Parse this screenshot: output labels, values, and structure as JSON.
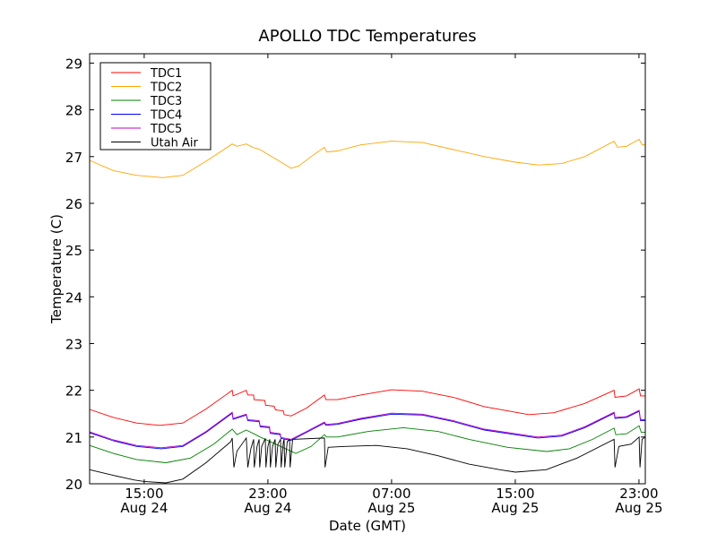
{
  "chart_data": {
    "type": "line",
    "title": "APOLLO TDC Temperatures",
    "xlabel": "Date (GMT)",
    "ylabel": "Temperature (C)",
    "x_units": "hours since Aug 24 00:00 GMT",
    "xlim": [
      11.47,
      47.41
    ],
    "ylim": [
      20,
      29.2
    ],
    "yticks": [
      20,
      21,
      22,
      23,
      24,
      25,
      26,
      27,
      28,
      29
    ],
    "xticks": [
      {
        "value": 15,
        "time": "15:00",
        "date": "Aug 24"
      },
      {
        "value": 23,
        "time": "23:00",
        "date": "Aug 24"
      },
      {
        "value": 31,
        "time": "07:00",
        "date": "Aug 25"
      },
      {
        "value": 39,
        "time": "15:00",
        "date": "Aug 25"
      },
      {
        "value": 47,
        "time": "23:00",
        "date": "Aug 25"
      }
    ],
    "grid": false,
    "legend_position": "top-left",
    "series": [
      {
        "name": "TDC1",
        "color": "#ff0000",
        "points": [
          [
            11.47,
            21.59
          ],
          [
            13,
            21.42
          ],
          [
            14.5,
            21.3
          ],
          [
            16,
            21.25
          ],
          [
            17.5,
            21.3
          ],
          [
            19,
            21.6
          ],
          [
            20.69,
            22.0
          ],
          [
            20.75,
            21.88
          ],
          [
            21.6,
            22.0
          ],
          [
            21.7,
            21.9
          ],
          [
            22.08,
            21.9
          ],
          [
            22.1,
            21.8
          ],
          [
            22.8,
            21.78
          ],
          [
            22.85,
            21.68
          ],
          [
            23.4,
            21.66
          ],
          [
            23.5,
            21.58
          ],
          [
            24.0,
            21.56
          ],
          [
            24.05,
            21.48
          ],
          [
            24.5,
            21.45
          ],
          [
            25.5,
            21.62
          ],
          [
            26.66,
            21.9
          ],
          [
            26.75,
            21.8
          ],
          [
            27.5,
            21.8
          ],
          [
            29,
            21.9
          ],
          [
            31,
            22.01
          ],
          [
            33,
            21.98
          ],
          [
            35,
            21.85
          ],
          [
            37,
            21.65
          ],
          [
            39.88,
            21.48
          ],
          [
            41.5,
            21.52
          ],
          [
            43.5,
            21.72
          ],
          [
            45.39,
            22.0
          ],
          [
            45.45,
            21.85
          ],
          [
            46.2,
            21.88
          ],
          [
            47.01,
            22.03
          ],
          [
            47.1,
            21.88
          ],
          [
            47.41,
            21.88
          ]
        ]
      },
      {
        "name": "TDC2",
        "color": "#ffa500",
        "points": [
          [
            11.47,
            26.92
          ],
          [
            13,
            26.7
          ],
          [
            14.5,
            26.6
          ],
          [
            16.2,
            26.55
          ],
          [
            17.5,
            26.6
          ],
          [
            19,
            26.9
          ],
          [
            20.69,
            27.27
          ],
          [
            21,
            27.22
          ],
          [
            21.6,
            27.27
          ],
          [
            22,
            27.2
          ],
          [
            22.5,
            27.15
          ],
          [
            23,
            27.05
          ],
          [
            23.5,
            26.95
          ],
          [
            24,
            26.85
          ],
          [
            24.5,
            26.75
          ],
          [
            25,
            26.8
          ],
          [
            26,
            27.05
          ],
          [
            26.66,
            27.2
          ],
          [
            26.8,
            27.1
          ],
          [
            27.5,
            27.12
          ],
          [
            29,
            27.25
          ],
          [
            31,
            27.33
          ],
          [
            33,
            27.3
          ],
          [
            35,
            27.15
          ],
          [
            37,
            27.0
          ],
          [
            39,
            26.88
          ],
          [
            40.5,
            26.82
          ],
          [
            42,
            26.85
          ],
          [
            43.5,
            27.0
          ],
          [
            45.39,
            27.33
          ],
          [
            45.6,
            27.2
          ],
          [
            46.2,
            27.22
          ],
          [
            47.01,
            27.37
          ],
          [
            47.2,
            27.25
          ],
          [
            47.41,
            27.25
          ]
        ]
      },
      {
        "name": "TDC3",
        "color": "#008000",
        "points": [
          [
            11.47,
            20.82
          ],
          [
            13,
            20.65
          ],
          [
            14.5,
            20.52
          ],
          [
            16.4,
            20.45
          ],
          [
            18,
            20.55
          ],
          [
            19.5,
            20.85
          ],
          [
            20.69,
            21.17
          ],
          [
            21,
            21.05
          ],
          [
            21.6,
            21.15
          ],
          [
            22.5,
            21.0
          ],
          [
            23.5,
            20.85
          ],
          [
            24.8,
            20.65
          ],
          [
            25.8,
            20.8
          ],
          [
            26.66,
            21.05
          ],
          [
            26.8,
            21.0
          ],
          [
            27.5,
            21.0
          ],
          [
            29.5,
            21.12
          ],
          [
            31.76,
            21.2
          ],
          [
            34,
            21.12
          ],
          [
            36,
            20.95
          ],
          [
            38.5,
            20.78
          ],
          [
            41.04,
            20.69
          ],
          [
            42.5,
            20.75
          ],
          [
            44,
            20.95
          ],
          [
            45.39,
            21.19
          ],
          [
            45.5,
            21.05
          ],
          [
            46.2,
            21.07
          ],
          [
            47.01,
            21.24
          ],
          [
            47.15,
            21.1
          ],
          [
            47.41,
            21.1
          ]
        ]
      },
      {
        "name": "TDC4",
        "color": "#0000ff",
        "points": [
          [
            11.47,
            21.09
          ],
          [
            13,
            20.92
          ],
          [
            14.5,
            20.8
          ],
          [
            16.1,
            20.75
          ],
          [
            17.5,
            20.8
          ],
          [
            19,
            21.1
          ],
          [
            20.69,
            21.51
          ],
          [
            20.75,
            21.38
          ],
          [
            21.6,
            21.47
          ],
          [
            21.7,
            21.35
          ],
          [
            22.43,
            21.33
          ],
          [
            22.5,
            21.22
          ],
          [
            23.1,
            21.2
          ],
          [
            23.15,
            21.08
          ],
          [
            23.8,
            21.05
          ],
          [
            23.85,
            20.97
          ],
          [
            24.5,
            20.93
          ],
          [
            25.5,
            21.1
          ],
          [
            26.66,
            21.3
          ],
          [
            26.75,
            21.25
          ],
          [
            27.5,
            21.27
          ],
          [
            29,
            21.38
          ],
          [
            31,
            21.49
          ],
          [
            33,
            21.47
          ],
          [
            35,
            21.33
          ],
          [
            37,
            21.15
          ],
          [
            40.46,
            20.98
          ],
          [
            42,
            21.02
          ],
          [
            43.5,
            21.2
          ],
          [
            45.39,
            21.51
          ],
          [
            45.45,
            21.4
          ],
          [
            46.2,
            21.42
          ],
          [
            47.01,
            21.55
          ],
          [
            47.1,
            21.35
          ],
          [
            47.41,
            21.35
          ]
        ]
      },
      {
        "name": "TDC5",
        "color": "#bf00bf",
        "points": [
          [
            11.47,
            21.11
          ],
          [
            13,
            20.94
          ],
          [
            14.5,
            20.82
          ],
          [
            16.1,
            20.77
          ],
          [
            17.5,
            20.82
          ],
          [
            19,
            21.12
          ],
          [
            20.69,
            21.53
          ],
          [
            20.75,
            21.4
          ],
          [
            21.6,
            21.49
          ],
          [
            21.7,
            21.37
          ],
          [
            22.43,
            21.35
          ],
          [
            22.5,
            21.24
          ],
          [
            23.1,
            21.22
          ],
          [
            23.15,
            21.1
          ],
          [
            23.8,
            21.07
          ],
          [
            23.85,
            20.99
          ],
          [
            24.5,
            20.95
          ],
          [
            25.5,
            21.12
          ],
          [
            26.66,
            21.32
          ],
          [
            26.75,
            21.27
          ],
          [
            27.5,
            21.29
          ],
          [
            29,
            21.4
          ],
          [
            31,
            21.51
          ],
          [
            33,
            21.49
          ],
          [
            35,
            21.35
          ],
          [
            37,
            21.17
          ],
          [
            40.46,
            21.0
          ],
          [
            42,
            21.04
          ],
          [
            43.5,
            21.22
          ],
          [
            45.39,
            21.53
          ],
          [
            45.45,
            21.42
          ],
          [
            46.2,
            21.44
          ],
          [
            47.01,
            21.57
          ],
          [
            47.1,
            21.37
          ],
          [
            47.41,
            21.37
          ]
        ]
      },
      {
        "name": "Utah Air",
        "color": "#000000",
        "points": [
          [
            11.47,
            20.3
          ],
          [
            13,
            20.18
          ],
          [
            14.37,
            20.08
          ],
          [
            15,
            20.05
          ],
          [
            16.4,
            20.02
          ],
          [
            17.5,
            20.1
          ],
          [
            19,
            20.45
          ],
          [
            20.6,
            20.9
          ],
          [
            20.69,
            20.98
          ],
          [
            20.8,
            20.35
          ],
          [
            21,
            20.7
          ],
          [
            21.6,
            20.98
          ],
          [
            21.7,
            20.35
          ],
          [
            21.9,
            20.75
          ],
          [
            22.08,
            20.95
          ],
          [
            22.12,
            20.35
          ],
          [
            22.3,
            20.8
          ],
          [
            22.43,
            20.95
          ],
          [
            22.47,
            20.35
          ],
          [
            22.6,
            20.8
          ],
          [
            22.83,
            20.97
          ],
          [
            22.87,
            20.35
          ],
          [
            23.0,
            20.8
          ],
          [
            23.12,
            20.95
          ],
          [
            23.16,
            20.35
          ],
          [
            23.3,
            20.8
          ],
          [
            23.47,
            20.95
          ],
          [
            23.51,
            20.35
          ],
          [
            23.65,
            20.85
          ],
          [
            23.82,
            20.95
          ],
          [
            23.86,
            20.35
          ],
          [
            24.0,
            20.9
          ],
          [
            24.05,
            20.95
          ],
          [
            24.09,
            20.35
          ],
          [
            24.25,
            20.9
          ],
          [
            24.4,
            20.95
          ],
          [
            24.44,
            20.35
          ],
          [
            24.6,
            20.95
          ],
          [
            26.66,
            20.98
          ],
          [
            26.7,
            20.35
          ],
          [
            26.9,
            20.78
          ],
          [
            28,
            20.8
          ],
          [
            30,
            20.82
          ],
          [
            32,
            20.75
          ],
          [
            34,
            20.6
          ],
          [
            36,
            20.42
          ],
          [
            38,
            20.3
          ],
          [
            39.01,
            20.25
          ],
          [
            41,
            20.3
          ],
          [
            43,
            20.55
          ],
          [
            45.39,
            20.95
          ],
          [
            45.45,
            20.35
          ],
          [
            45.7,
            20.8
          ],
          [
            46.5,
            20.85
          ],
          [
            47.01,
            21.0
          ],
          [
            47.07,
            20.35
          ],
          [
            47.2,
            20.95
          ],
          [
            47.41,
            21.0
          ]
        ]
      }
    ]
  }
}
